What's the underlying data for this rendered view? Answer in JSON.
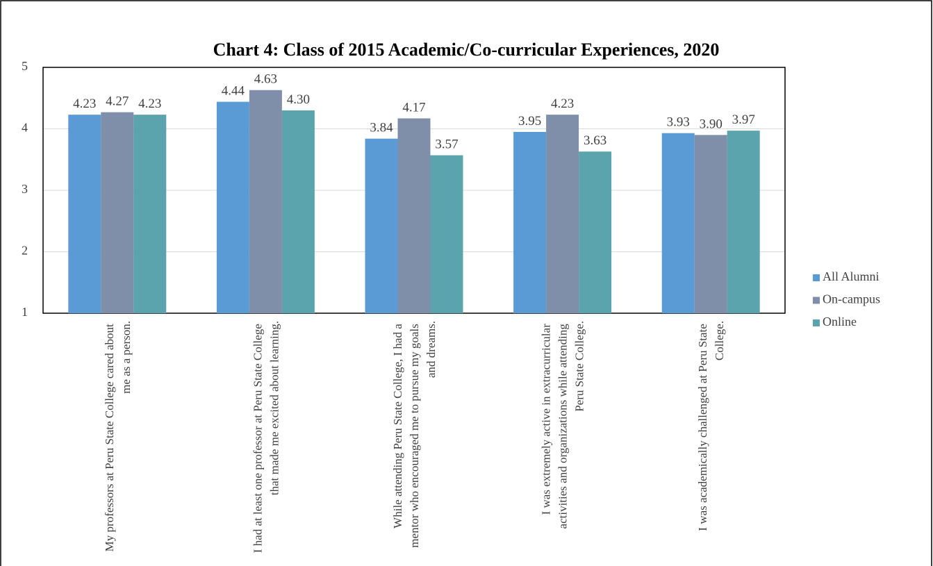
{
  "chart_data": {
    "type": "bar",
    "title": "Chart 4: Class of 2015 Academic/Co-curricular Experiences, 2020",
    "categories": [
      "My professors at Peru State College cared about me as a person.",
      "I had at least one professor at Peru State College that made me excited about learning.",
      "While attending Peru State College, I had a mentor who encouraged me to pursue my goals and dreams.",
      "I was extremely active in extracurricular activities and organizations while attending Peru State College.",
      "I was academically challenged at Peru State College."
    ],
    "series": [
      {
        "name": "All Alumni",
        "color": "#5b9bd5",
        "values": [
          4.23,
          4.44,
          3.84,
          3.95,
          3.93
        ],
        "value_labels": [
          "4.23",
          "4.44",
          "3.84",
          "3.95",
          "3.93"
        ]
      },
      {
        "name": "On-campus",
        "color": "#7f8faa",
        "values": [
          4.27,
          4.63,
          4.17,
          4.23,
          3.9
        ],
        "value_labels": [
          "4.27",
          "4.63",
          "4.17",
          "4.23",
          "3.90"
        ]
      },
      {
        "name": "Online",
        "color": "#5ba3ad",
        "values": [
          4.23,
          4.3,
          3.57,
          3.63,
          3.97
        ],
        "value_labels": [
          "4.23",
          "4.30",
          "3.57",
          "3.63",
          "3.97"
        ]
      }
    ],
    "ylim": [
      1,
      5
    ],
    "yticks": [
      1,
      2,
      3,
      4,
      5
    ],
    "grid": true,
    "legend": "right"
  }
}
